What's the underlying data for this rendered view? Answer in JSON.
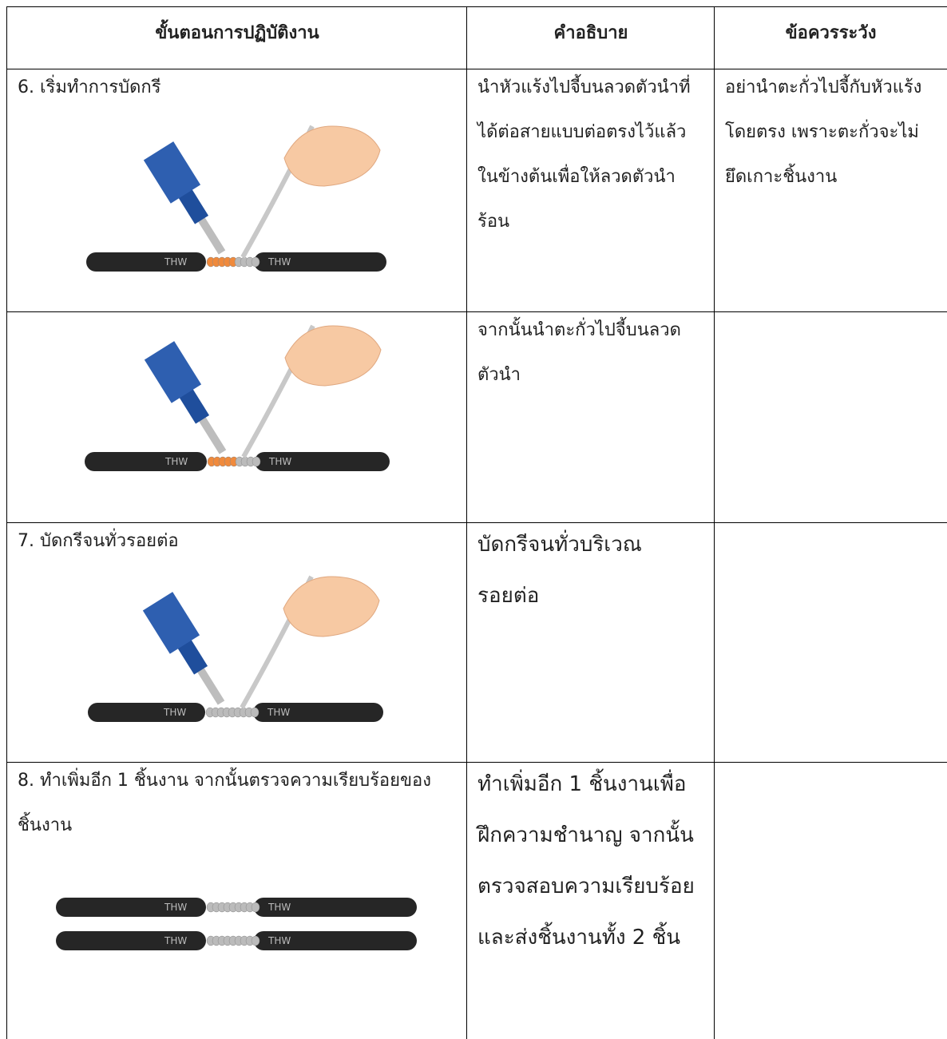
{
  "table": {
    "headers": [
      "ขั้นตอนการปฏิบัติงาน",
      "คำอธิบาย",
      "ข้อควรระวัง"
    ],
    "rows": [
      {
        "step": [
          "6. เริ่มทำการบัดกรี"
        ],
        "description": [
          "นำหัวแร้งไปจี้บนลวดตัวนำที่",
          "ได้ต่อสายแบบต่อตรงไว้แล้ว",
          "ในข้างต้นเพื่อให้ลวดตัวนำ",
          "ร้อน"
        ],
        "caution": [
          "อย่านำตะกั่วไปจี้กับหัวแร้ง",
          "โดยตรง เพราะตะกั่วจะไม่",
          "ยึดเกาะชิ้นงาน"
        ]
      },
      {
        "step": [],
        "description": [
          "จากนั้นนำตะกั่วไปจี้บนลวด",
          "ตัวนำ"
        ],
        "caution": []
      },
      {
        "step": [
          "7. บัดกรีจนทั่วรอยต่อ"
        ],
        "description": [
          "บัดกรีจนทั่วบริเวณ",
          "รอยต่อ"
        ],
        "caution": []
      },
      {
        "step": [
          "8. ทำเพิ่มอีก 1 ชิ้นงาน จากนั้นตรวจความเรียบร้อยของ",
          "ชิ้นงาน"
        ],
        "description": [
          "ทำเพิ่มอีก 1 ชิ้นงานเพื่อ",
          "ฝึกความชำนาญ จากนั้น",
          "ตรวจสอบความเรียบร้อย",
          "และส่งชิ้นงานทั้ง 2 ชิ้น"
        ],
        "caution": []
      }
    ]
  },
  "cable_label": "THW"
}
